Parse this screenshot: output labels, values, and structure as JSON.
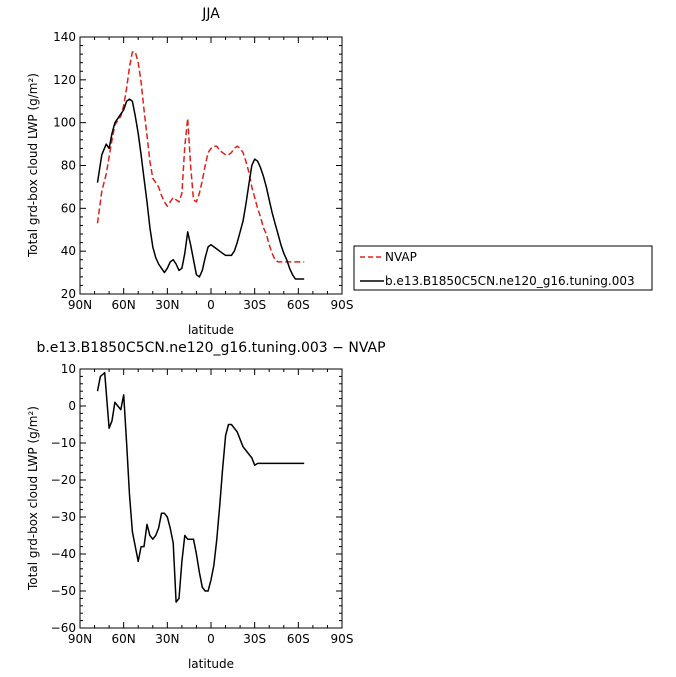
{
  "chart_data": [
    {
      "type": "line",
      "title": "JJA",
      "xlabel": "latitude",
      "ylabel": "Total grd-box cloud LWP (g/m²)",
      "xlim": [
        90,
        -90
      ],
      "ylim": [
        20,
        140
      ],
      "x_ticks": [
        90,
        60,
        30,
        0,
        -30,
        -60,
        -90
      ],
      "x_tick_labels": [
        "90N",
        "60N",
        "30N",
        "0",
        "30S",
        "60S",
        "90S"
      ],
      "y_ticks": [
        20,
        40,
        60,
        80,
        100,
        120,
        140
      ],
      "legend": {
        "placement": "right",
        "entries": [
          "NVAP",
          "b.e13.B1850C5CN.ne120_g16.tuning.003"
        ]
      },
      "series": [
        {
          "name": "NVAP",
          "color": "#e0201b",
          "dash": "dashed",
          "x": [
            78,
            75,
            72,
            70,
            68,
            66,
            64,
            62,
            60,
            58,
            56,
            54,
            52,
            50,
            48,
            46,
            44,
            42,
            40,
            38,
            36,
            34,
            32,
            30,
            28,
            26,
            24,
            22,
            20,
            18,
            16,
            14,
            12,
            10,
            8,
            6,
            4,
            2,
            0,
            -2,
            -4,
            -6,
            -8,
            -10,
            -12,
            -14,
            -16,
            -18,
            -20,
            -22,
            -24,
            -26,
            -28,
            -30,
            -32,
            -34,
            -36,
            -38,
            -40,
            -42,
            -44,
            -46,
            -48,
            -50,
            -52,
            -54,
            -56,
            -58,
            -60,
            -62,
            -64
          ],
          "y": [
            53,
            68,
            76,
            84,
            92,
            99,
            101,
            103,
            108,
            116,
            126,
            133,
            133,
            128,
            119,
            106,
            94,
            82,
            74,
            72,
            70,
            66,
            63,
            61,
            63,
            65,
            64,
            63,
            67,
            89,
            102,
            80,
            64,
            63,
            67,
            73,
            80,
            86,
            88,
            89,
            89,
            87,
            86,
            85,
            85,
            86,
            88,
            89,
            88,
            86,
            82,
            77,
            70,
            65,
            60,
            56,
            51,
            48,
            43,
            39,
            36,
            35,
            35,
            35,
            35,
            35,
            35,
            35,
            35,
            35,
            35
          ]
        },
        {
          "name": "b.e13.B1850C5CN.ne120_g16.tuning.003",
          "color": "#000000",
          "dash": "solid",
          "x": [
            78,
            75,
            72,
            70,
            68,
            66,
            64,
            62,
            60,
            58,
            56,
            54,
            52,
            50,
            48,
            46,
            44,
            42,
            40,
            38,
            36,
            34,
            32,
            30,
            28,
            26,
            24,
            22,
            20,
            18,
            16,
            14,
            12,
            10,
            8,
            6,
            4,
            2,
            0,
            -2,
            -4,
            -6,
            -8,
            -10,
            -12,
            -14,
            -16,
            -18,
            -20,
            -22,
            -24,
            -26,
            -28,
            -30,
            -32,
            -34,
            -36,
            -38,
            -40,
            -42,
            -44,
            -46,
            -48,
            -50,
            -52,
            -54,
            -56,
            -58,
            -60,
            -62,
            -64
          ],
          "y": [
            72,
            85,
            90,
            88,
            95,
            100,
            102,
            104,
            106,
            110,
            111,
            110,
            103,
            95,
            85,
            74,
            63,
            51,
            42,
            37,
            34,
            32,
            30,
            32,
            35,
            36,
            34,
            31,
            32,
            39,
            49,
            43,
            36,
            29,
            28,
            31,
            37,
            42,
            43,
            42,
            41,
            40,
            39,
            38,
            38,
            38,
            40,
            44,
            49,
            54,
            62,
            71,
            80,
            83,
            82,
            79,
            75,
            70,
            64,
            58,
            53,
            48,
            43,
            39,
            36,
            32,
            29,
            27,
            27,
            27,
            27
          ]
        }
      ]
    },
    {
      "type": "line",
      "title": "b.e13.B1850C5CN.ne120_g16.tuning.003 − NVAP",
      "xlabel": "latitude",
      "ylabel": "Total grd-box cloud LWP (g/m²)",
      "xlim": [
        90,
        -90
      ],
      "ylim": [
        -60,
        10
      ],
      "x_ticks": [
        90,
        60,
        30,
        0,
        -30,
        -60,
        -90
      ],
      "x_tick_labels": [
        "90N",
        "60N",
        "30N",
        "0",
        "30S",
        "60S",
        "90S"
      ],
      "y_ticks": [
        -60,
        -50,
        -40,
        -30,
        -20,
        -10,
        0,
        10
      ],
      "series": [
        {
          "color": "#000000",
          "dash": "solid",
          "x": [
            78,
            76,
            73,
            70,
            68,
            66,
            64,
            62,
            60,
            58,
            56,
            54,
            52,
            50,
            48,
            46,
            44,
            42,
            40,
            38,
            36,
            34,
            32,
            30,
            28,
            26,
            24,
            22,
            20,
            18,
            16,
            14,
            12,
            10,
            8,
            6,
            4,
            2,
            0,
            -2,
            -4,
            -6,
            -8,
            -10,
            -12,
            -14,
            -16,
            -18,
            -20,
            -22,
            -24,
            -26,
            -28,
            -30,
            -32,
            -34,
            -36,
            -38,
            -40,
            -42,
            -44,
            -46,
            -48,
            -50,
            -52,
            -54,
            -56,
            -58,
            -60,
            -62,
            -64
          ],
          "y": [
            4,
            8,
            9,
            -6,
            -4,
            1,
            0,
            -1,
            3,
            -10,
            -24,
            -34,
            -38,
            -42,
            -38,
            -38,
            -32,
            -35,
            -36,
            -35,
            -33,
            -29,
            -29,
            -30,
            -33,
            -37,
            -53,
            -52,
            -42,
            -35,
            -36,
            -36,
            -36,
            -40,
            -45,
            -49,
            -50,
            -50,
            -47,
            -43,
            -36,
            -27,
            -17,
            -8,
            -5,
            -5,
            -6,
            -7,
            -9,
            -11,
            -12,
            -13,
            -14,
            -16,
            -15.5,
            -15.5,
            -15.5,
            -15.5,
            -15.5,
            -15.5,
            -15.5,
            -15.5,
            -15.5,
            -15.5,
            -15.5,
            -15.5,
            -15.5,
            -15.5,
            -15.5,
            -15.5,
            -15.5
          ]
        }
      ]
    }
  ]
}
